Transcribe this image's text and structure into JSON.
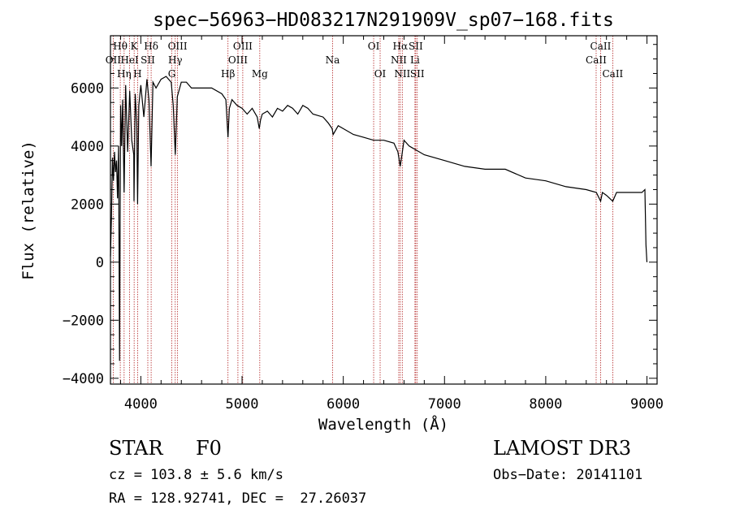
{
  "chart_data": {
    "type": "line",
    "title": "spec−56963−HD083217N291909V_sp07−168.fits",
    "xlabel": "Wavelength (Å)",
    "ylabel": "Flux (relative)",
    "xlim": [
      3700,
      9100
    ],
    "ylim": [
      -4200,
      7800
    ],
    "xticks": [
      4000,
      5000,
      6000,
      7000,
      8000,
      9000
    ],
    "xtick_labels": [
      "4000",
      "5000",
      "6000",
      "7000",
      "8000",
      "9000"
    ],
    "yticks": [
      -4000,
      -2000,
      0,
      2000,
      4000,
      6000
    ],
    "ytick_labels": [
      "−4000",
      "−2000",
      "0",
      "2000",
      "4000",
      "6000"
    ],
    "series": [
      {
        "name": "flux",
        "x": [
          3700,
          3710,
          3720,
          3730,
          3740,
          3750,
          3760,
          3770,
          3780,
          3790,
          3800,
          3810,
          3820,
          3835,
          3850,
          3870,
          3890,
          3910,
          3930,
          3933,
          3945,
          3960,
          3968,
          3980,
          4000,
          4030,
          4060,
          4080,
          4101,
          4120,
          4150,
          4200,
          4250,
          4300,
          4320,
          4340,
          4360,
          4400,
          4450,
          4500,
          4600,
          4700,
          4800,
          4840,
          4861,
          4875,
          4900,
          4950,
          5000,
          5050,
          5100,
          5150,
          5170,
          5183,
          5200,
          5250,
          5300,
          5350,
          5400,
          5450,
          5500,
          5550,
          5600,
          5650,
          5700,
          5800,
          5850,
          5890,
          5900,
          5950,
          6000,
          6100,
          6200,
          6300,
          6400,
          6500,
          6540,
          6562,
          6580,
          6600,
          6650,
          6700,
          6800,
          7000,
          7200,
          7400,
          7600,
          7800,
          8000,
          8200,
          8400,
          8500,
          8542,
          8560,
          8600,
          8662,
          8700,
          8800,
          8900,
          8950,
          8980,
          8990,
          9000
        ],
        "y": [
          200,
          1500,
          3600,
          2800,
          3800,
          3100,
          3500,
          2200,
          4000,
          -3400,
          5400,
          4000,
          5600,
          2400,
          6100,
          3800,
          5900,
          4200,
          3700,
          2100,
          5800,
          4800,
          2000,
          5400,
          6100,
          5000,
          6300,
          5600,
          3300,
          6200,
          6000,
          6300,
          6400,
          6200,
          5400,
          3700,
          5700,
          6200,
          6200,
          6000,
          6000,
          6000,
          5800,
          5600,
          4300,
          5300,
          5600,
          5400,
          5300,
          5100,
          5300,
          5000,
          4600,
          4900,
          5100,
          5200,
          5000,
          5300,
          5200,
          5400,
          5300,
          5100,
          5400,
          5300,
          5100,
          5000,
          4800,
          4600,
          4400,
          4700,
          4600,
          4400,
          4300,
          4200,
          4200,
          4100,
          3800,
          3300,
          3700,
          4200,
          4000,
          3900,
          3700,
          3500,
          3300,
          3200,
          3200,
          2900,
          2800,
          2600,
          2500,
          2400,
          2100,
          2400,
          2300,
          2100,
          2400,
          2400,
          2400,
          2400,
          2500,
          600,
          0
        ]
      }
    ],
    "lines": [
      {
        "label": "OII",
        "wavelength": 3727,
        "row": 2
      },
      {
        "label": "Hθ",
        "wavelength": 3797,
        "row": 1
      },
      {
        "label": "Hη",
        "wavelength": 3835,
        "row": 3
      },
      {
        "label": "HeI",
        "wavelength": 3889,
        "row": 2
      },
      {
        "label": "K",
        "wavelength": 3934,
        "row": 1
      },
      {
        "label": "H",
        "wavelength": 3968,
        "row": 3
      },
      {
        "label": "SII",
        "wavelength": 4069,
        "row": 2
      },
      {
        "label": "Hδ",
        "wavelength": 4102,
        "row": 1
      },
      {
        "label": "G",
        "wavelength": 4306,
        "row": 3
      },
      {
        "label": "Hγ",
        "wavelength": 4340,
        "row": 2
      },
      {
        "label": "OIII",
        "wavelength": 4363,
        "row": 1
      },
      {
        "label": "Hβ",
        "wavelength": 4861,
        "row": 3
      },
      {
        "label": "OIII",
        "wavelength": 4959,
        "row": 2
      },
      {
        "label": "OIII",
        "wavelength": 5007,
        "row": 1
      },
      {
        "label": "Mg",
        "wavelength": 5175,
        "row": 3
      },
      {
        "label": "Na",
        "wavelength": 5894,
        "row": 2
      },
      {
        "label": "OI",
        "wavelength": 6300,
        "row": 1
      },
      {
        "label": "OI",
        "wavelength": 6364,
        "row": 3
      },
      {
        "label": "NII",
        "wavelength": 6548,
        "row": 2
      },
      {
        "label": "Hα",
        "wavelength": 6563,
        "row": 1
      },
      {
        "label": "NII",
        "wavelength": 6583,
        "row": 3
      },
      {
        "label": "Li",
        "wavelength": 6708,
        "row": 2
      },
      {
        "label": "SII",
        "wavelength": 6716,
        "row": 1
      },
      {
        "label": "SII",
        "wavelength": 6731,
        "row": 3
      },
      {
        "label": "CaII",
        "wavelength": 8498,
        "row": 2
      },
      {
        "label": "CaII",
        "wavelength": 8542,
        "row": 1
      },
      {
        "label": "CaII",
        "wavelength": 8662,
        "row": 3
      }
    ],
    "colors": {
      "axes": "#000000",
      "line_marker": "#b22222",
      "spectrum": "#000000"
    }
  },
  "info": {
    "object_class": "STAR",
    "subclass": "F0",
    "survey": "LAMOST DR3",
    "cz": "cz = 103.8 ± 5.6 km/s",
    "obs_date": "Obs−Date: 20141101",
    "coords": "RA = 128.92741, DEC =  27.26037"
  }
}
